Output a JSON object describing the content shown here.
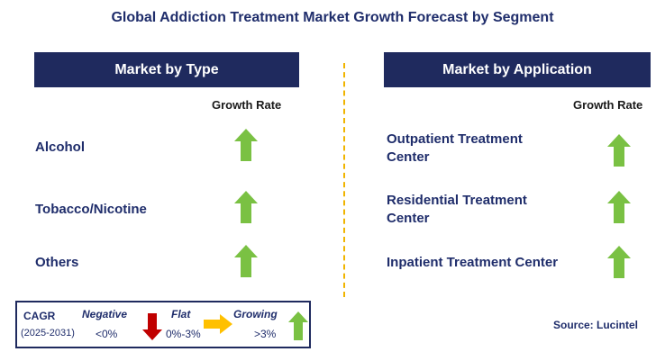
{
  "title": "Global Addiction Treatment Market Growth Forecast by Segment",
  "left_panel": {
    "header": "Market by Type",
    "growth_rate_label": "Growth Rate",
    "segments": [
      {
        "label": "Alcohol",
        "trend": "growing"
      },
      {
        "label": "Tobacco/Nicotine",
        "trend": "growing"
      },
      {
        "label": "Others",
        "trend": "growing"
      }
    ]
  },
  "right_panel": {
    "header": "Market by Application",
    "growth_rate_label": "Growth Rate",
    "segments": [
      {
        "line1": "Outpatient Treatment",
        "line2": "Center",
        "trend": "growing"
      },
      {
        "line1": "Residential Treatment",
        "line2": "Center",
        "trend": "growing"
      },
      {
        "line1": "Inpatient Treatment Center",
        "line2": "",
        "trend": "growing"
      }
    ]
  },
  "legend": {
    "cagr": "CAGR",
    "period": "(2025-2031)",
    "negative_label": "Negative",
    "negative_value": "<0%",
    "flat_label": "Flat",
    "flat_value": "0%-3%",
    "growing_label": "Growing",
    "growing_value": ">3%"
  },
  "source": "Source: Lucintel",
  "colors": {
    "header_bg": "#1f2a5e",
    "title": "#1f2d6b",
    "growing": "#7ac143",
    "negative": "#c00000",
    "flat": "#ffc000",
    "divider": "#f0b400"
  },
  "icons": {
    "growing": "up-arrow-icon",
    "negative": "down-arrow-icon",
    "flat": "right-arrow-icon"
  }
}
